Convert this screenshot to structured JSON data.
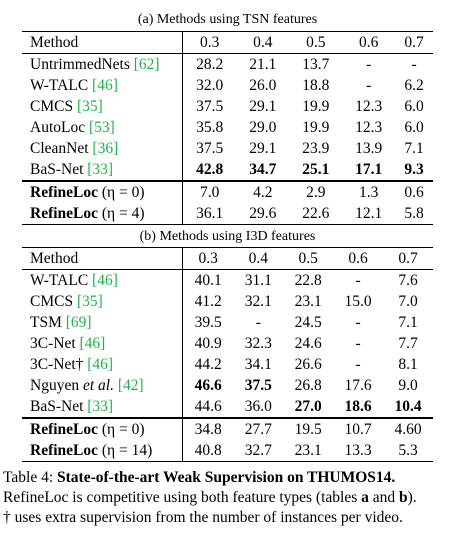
{
  "table_a": {
    "caption": "(a) Methods using TSN features",
    "header": [
      "Method",
      "0.3",
      "0.4",
      "0.5",
      "0.6",
      "0.7"
    ],
    "rows": [
      {
        "method": "UntrimmedNets",
        "cite": "[62]",
        "values": [
          "28.2",
          "21.1",
          "13.7",
          "-",
          "-"
        ]
      },
      {
        "method": "W-TALC",
        "cite": "[46]",
        "values": [
          "32.0",
          "26.0",
          "18.8",
          "-",
          "6.2"
        ]
      },
      {
        "method": "CMCS",
        "cite": "[35]",
        "values": [
          "37.5",
          "29.1",
          "19.9",
          "12.3",
          "6.0"
        ]
      },
      {
        "method": "AutoLoc",
        "cite": "[53]",
        "values": [
          "35.8",
          "29.0",
          "19.9",
          "12.3",
          "6.0"
        ]
      },
      {
        "method": "CleanNet",
        "cite": "[36]",
        "values": [
          "37.5",
          "29.1",
          "23.9",
          "13.9",
          "7.1"
        ]
      },
      {
        "method": "BaS-Net",
        "cite": "[33]",
        "values": [
          "42.8",
          "34.7",
          "25.1",
          "17.1",
          "9.3"
        ]
      },
      {
        "method": "RefineLoc",
        "variant": "(η = 0)",
        "values": [
          "7.0",
          "4.2",
          "2.9",
          "1.3",
          "0.6"
        ]
      },
      {
        "method": "RefineLoc",
        "variant": "(η = 4)",
        "values": [
          "36.1",
          "29.6",
          "22.6",
          "12.1",
          "5.8"
        ]
      }
    ]
  },
  "table_b": {
    "caption": "(b) Methods using I3D features",
    "header": [
      "Method",
      "0.3",
      "0.4",
      "0.5",
      "0.6",
      "0.7"
    ],
    "rows": [
      {
        "method": "W-TALC",
        "cite": "[46]",
        "values": [
          "40.1",
          "31.1",
          "22.8",
          "-",
          "7.6"
        ]
      },
      {
        "method": "CMCS",
        "cite": "[35]",
        "values": [
          "41.2",
          "32.1",
          "23.1",
          "15.0",
          "7.0"
        ]
      },
      {
        "method": "TSM",
        "cite": "[69]",
        "values": [
          "39.5",
          "-",
          "24.5",
          "-",
          "7.1"
        ]
      },
      {
        "method": "3C-Net",
        "cite": "[46]",
        "values": [
          "40.9",
          "32.3",
          "24.6",
          "-",
          "7.7"
        ]
      },
      {
        "method": "3C-Net†",
        "cite": "[46]",
        "values": [
          "44.2",
          "34.1",
          "26.6",
          "-",
          "8.1"
        ]
      },
      {
        "method": "Nguyen",
        "etal": "et al.",
        "cite": "[42]",
        "values": [
          "46.6",
          "37.5",
          "26.8",
          "17.6",
          "9.0"
        ]
      },
      {
        "method": "BaS-Net",
        "cite": "[33]",
        "values": [
          "44.6",
          "36.0",
          "27.0",
          "18.6",
          "10.4"
        ]
      },
      {
        "method": "RefineLoc",
        "variant": "(η = 0)",
        "values": [
          "34.8",
          "27.7",
          "19.5",
          "10.7",
          "4.60"
        ]
      },
      {
        "method": "RefineLoc",
        "variant": "(η = 14)",
        "values": [
          "40.8",
          "32.7",
          "23.1",
          "13.3",
          "5.3"
        ]
      }
    ]
  },
  "caption": {
    "label": "Table 4:",
    "title": "State-of-the-art Weak Supervision on THUMOS14.",
    "text": "RefineLoc is competitive using both feature types (tables",
    "a": "a",
    "and": "and",
    "b": "b",
    "end": ").",
    "note": "† uses extra supervision from the number of instances per video."
  }
}
